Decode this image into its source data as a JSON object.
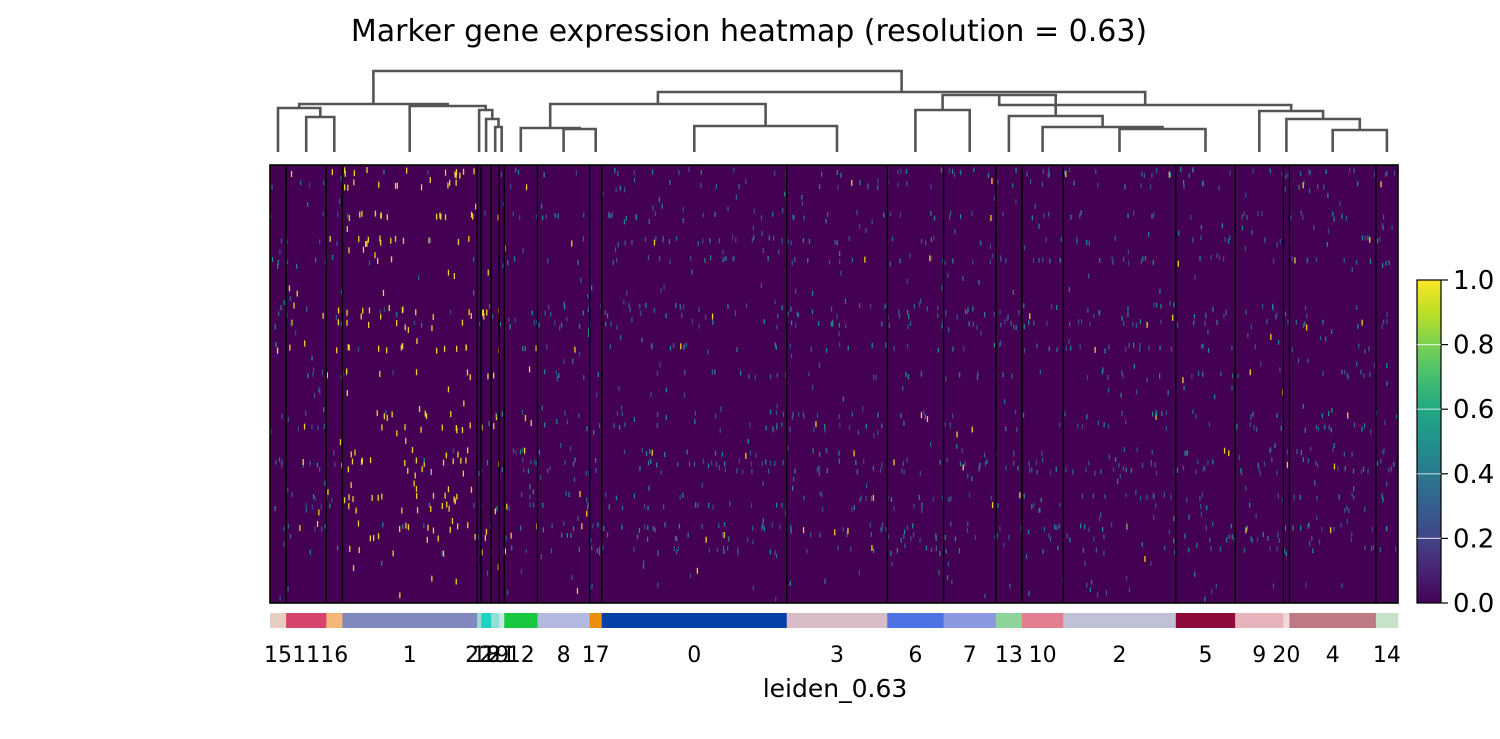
{
  "chart_data": {
    "type": "heatmap",
    "title": "Marker gene expression heatmap (resolution = 0.63)",
    "xlabel": "leiden_0.63",
    "ylabel": "",
    "colormap": "viridis",
    "colorbar": {
      "min": 0.0,
      "max": 1.0,
      "ticks": [
        "0.0",
        "0.2",
        "0.4",
        "0.6",
        "0.8",
        "1.0"
      ]
    },
    "grid": false,
    "dendrogram": true,
    "groups": [
      {
        "label": "15",
        "cells": 16,
        "color": "#e8cdc3"
      },
      {
        "label": "11",
        "cells": 40,
        "color": "#d6446b"
      },
      {
        "label": "16",
        "cells": 16,
        "color": "#f3b77a"
      },
      {
        "label": "1",
        "cells": 134,
        "color": "#8089bd"
      },
      {
        "label": "22",
        "cells": 4,
        "color": "#9fd8d0"
      },
      {
        "label": "18",
        "cells": 10,
        "color": "#1fd3c2"
      },
      {
        "label": "19",
        "cells": 8,
        "color": "#8fe0d8"
      },
      {
        "label": "21",
        "cells": 5,
        "color": "#c8e8e0"
      },
      {
        "label": "12",
        "cells": 33,
        "color": "#18c83e"
      },
      {
        "label": "8",
        "cells": 52,
        "color": "#b4b9e2"
      },
      {
        "label": "17",
        "cells": 12,
        "color": "#ec8e09"
      },
      {
        "label": "0",
        "cells": 184,
        "color": "#0341a8"
      },
      {
        "label": "3",
        "cells": 100,
        "color": "#d8bcc4"
      },
      {
        "label": "6",
        "cells": 56,
        "color": "#4d72e4"
      },
      {
        "label": "7",
        "cells": 52,
        "color": "#8a98e2"
      },
      {
        "label": "13",
        "cells": 26,
        "color": "#8ed49a"
      },
      {
        "label": "10",
        "cells": 41,
        "color": "#e27e90"
      },
      {
        "label": "2",
        "cells": 112,
        "color": "#bec2d4"
      },
      {
        "label": "5",
        "cells": 59,
        "color": "#8e0a3c"
      },
      {
        "label": "9",
        "cells": 48,
        "color": "#e8b4bc"
      },
      {
        "label": "20",
        "cells": 6,
        "color": "#f2dada"
      },
      {
        "label": "4",
        "cells": 86,
        "color": "#bd7a83"
      },
      {
        "label": "14",
        "cells": 22,
        "color": "#c6e2c8"
      }
    ]
  }
}
